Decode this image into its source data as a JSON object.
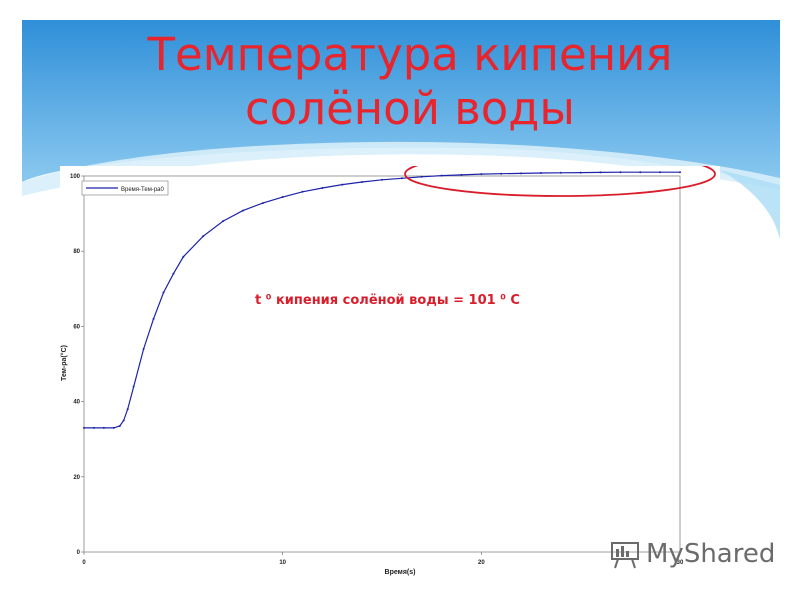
{
  "slide": {
    "title": "Температура кипения солёной воды",
    "annotation": "t ⁰ кипения солёной воды = 101 ⁰ С",
    "watermark": "MyShared",
    "colors": {
      "title": "#e8242c",
      "sky_top": "#2f8fd8",
      "sky_bottom": "#7fc3ee",
      "highlight_ellipse": "#d91d2b"
    }
  },
  "chart_data": {
    "type": "line",
    "xlabel": "Время(s)",
    "ylabel": "Тем-ра(°C)",
    "xlim": [
      0,
      30
    ],
    "ylim": [
      0,
      100
    ],
    "x_ticks": [
      "0",
      "10",
      "20",
      "30"
    ],
    "y_ticks": [
      "0",
      "20",
      "40",
      "60",
      "80",
      "100"
    ],
    "grid": true,
    "legend_position": "top-left",
    "colors": {
      "line": "#1c23a8"
    },
    "series": [
      {
        "name": "Время-Тем-ра0",
        "x": [
          0,
          0.5,
          1,
          1.5,
          1.8,
          2.0,
          2.2,
          2.5,
          3.0,
          3.5,
          4.0,
          4.5,
          5.0,
          6.0,
          7.0,
          8.0,
          9.0,
          10.0,
          11.0,
          12.0,
          13.0,
          14.0,
          15.0,
          16.0,
          17.0,
          18.0,
          19.0,
          20.0,
          21.0,
          22.0,
          23.0,
          24.0,
          25.0,
          26.0,
          27.0,
          28.0,
          29.0,
          30.0
        ],
        "y": [
          33,
          33,
          33,
          33,
          33.5,
          35,
          38,
          44,
          54,
          62,
          69,
          74,
          78.5,
          84,
          88,
          90.8,
          92.8,
          94.4,
          95.8,
          96.8,
          97.7,
          98.4,
          99.0,
          99.4,
          99.8,
          100.1,
          100.3,
          100.5,
          100.6,
          100.7,
          100.8,
          100.85,
          100.9,
          100.95,
          101.0,
          101.0,
          101.0,
          101.0
        ]
      }
    ]
  }
}
